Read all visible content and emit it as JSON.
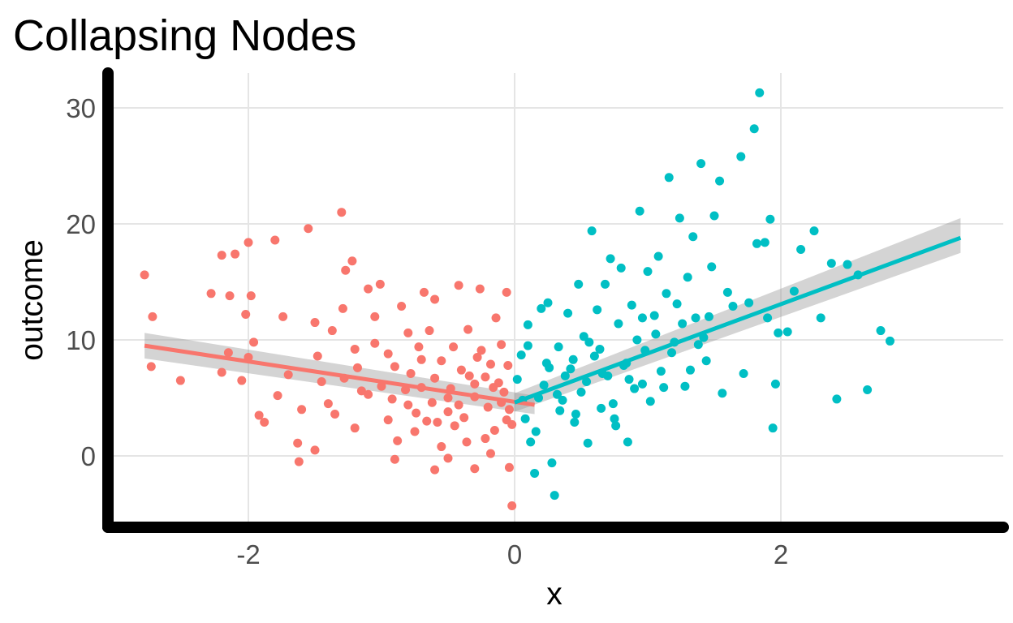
{
  "chart_data": {
    "type": "scatter",
    "title": "Collapsing Nodes",
    "xlabel": "x",
    "ylabel": "outcome",
    "xlim": [
      -3.0,
      3.5
    ],
    "ylim": [
      -6,
      33
    ],
    "x_ticks": [
      -2,
      0,
      2
    ],
    "x_tick_labels": [
      "-2",
      "0",
      "2"
    ],
    "y_ticks": [
      0,
      10,
      20,
      30
    ],
    "y_tick_labels": [
      "0",
      "10",
      "20",
      "30"
    ],
    "grid": true,
    "legend": "none",
    "colors": {
      "left": "#F8766D",
      "right": "#00BFC4",
      "ribbon": "#999999",
      "axis": "#000000"
    },
    "series": [
      {
        "color": "#F8766D",
        "points": [
          [
            -2.78,
            15.6
          ],
          [
            -2.72,
            12.0
          ],
          [
            -2.73,
            7.7
          ],
          [
            -2.51,
            6.5
          ],
          [
            -2.28,
            14.0
          ],
          [
            -2.2,
            17.3
          ],
          [
            -2.1,
            17.4
          ],
          [
            -2.14,
            13.8
          ],
          [
            -2.2,
            7.2
          ],
          [
            -2.15,
            8.9
          ],
          [
            -2.0,
            18.4
          ],
          [
            -1.98,
            13.8
          ],
          [
            -2.02,
            12.2
          ],
          [
            -2.0,
            8.5
          ],
          [
            -2.05,
            6.5
          ],
          [
            -1.96,
            9.8
          ],
          [
            -1.92,
            3.5
          ],
          [
            -1.88,
            2.9
          ],
          [
            -1.8,
            18.6
          ],
          [
            -1.78,
            5.2
          ],
          [
            -1.74,
            12.0
          ],
          [
            -1.7,
            7.0
          ],
          [
            -1.63,
            1.1
          ],
          [
            -1.6,
            4.0
          ],
          [
            -1.55,
            19.6
          ],
          [
            -1.5,
            11.5
          ],
          [
            -1.48,
            8.6
          ],
          [
            -1.45,
            6.4
          ],
          [
            -1.4,
            4.5
          ],
          [
            -1.37,
            10.8
          ],
          [
            -1.3,
            21.0
          ],
          [
            -1.29,
            12.7
          ],
          [
            -1.27,
            16.0
          ],
          [
            -1.22,
            16.8
          ],
          [
            -1.2,
            9.2
          ],
          [
            -1.15,
            5.6
          ],
          [
            -1.1,
            14.4
          ],
          [
            -1.05,
            12.0
          ],
          [
            -1.01,
            14.8
          ],
          [
            -0.95,
            3.1
          ],
          [
            -0.9,
            7.7
          ],
          [
            -0.85,
            12.9
          ],
          [
            -0.8,
            10.6
          ],
          [
            -0.75,
            2.1
          ],
          [
            -0.7,
            8.3
          ],
          [
            -0.68,
            14.1
          ],
          [
            -0.64,
            10.8
          ],
          [
            -0.6,
            13.5
          ],
          [
            -0.55,
            0.8
          ],
          [
            -0.5,
            5.0
          ],
          [
            -0.46,
            9.4
          ],
          [
            -0.42,
            14.7
          ],
          [
            -0.38,
            3.3
          ],
          [
            -0.35,
            10.9
          ],
          [
            -0.3,
            6.2
          ],
          [
            -0.26,
            14.4
          ],
          [
            -0.22,
            1.5
          ],
          [
            -0.18,
            7.9
          ],
          [
            -0.14,
            11.9
          ],
          [
            -0.1,
            4.6
          ],
          [
            -0.06,
            14.1
          ],
          [
            -0.04,
            -1.0
          ],
          [
            -0.02,
            -4.3
          ],
          [
            -0.6,
            -1.2
          ],
          [
            -0.9,
            -0.3
          ],
          [
            -1.2,
            2.4
          ],
          [
            -1.5,
            0.5
          ],
          [
            -1.62,
            -0.5
          ],
          [
            -1.28,
            6.7
          ],
          [
            -1.1,
            5.3
          ],
          [
            -0.95,
            8.8
          ],
          [
            -0.8,
            4.4
          ],
          [
            -0.7,
            5.9
          ],
          [
            -0.6,
            6.7
          ],
          [
            -0.5,
            3.8
          ],
          [
            -0.4,
            7.4
          ],
          [
            -0.3,
            5.1
          ],
          [
            -0.2,
            4.2
          ],
          [
            -0.12,
            6.3
          ],
          [
            -0.05,
            7.8
          ],
          [
            -0.02,
            2.7
          ],
          [
            -1.0,
            6.0
          ],
          [
            -0.92,
            4.9
          ],
          [
            -0.78,
            7.1
          ],
          [
            -0.66,
            3.0
          ],
          [
            -0.55,
            8.2
          ],
          [
            -0.45,
            2.6
          ],
          [
            -0.34,
            6.9
          ],
          [
            -0.25,
            9.1
          ],
          [
            -0.15,
            2.2
          ],
          [
            -0.08,
            5.5
          ],
          [
            -1.35,
            3.6
          ],
          [
            -1.18,
            7.6
          ],
          [
            -1.05,
            9.7
          ],
          [
            -0.88,
            1.3
          ],
          [
            -0.72,
            9.4
          ],
          [
            -0.62,
            4.6
          ],
          [
            -0.48,
            5.8
          ],
          [
            -0.36,
            1.2
          ],
          [
            -0.28,
            8.5
          ],
          [
            -0.16,
            5.9
          ],
          [
            -0.1,
            9.6
          ],
          [
            -0.04,
            4.0
          ],
          [
            -0.5,
            -0.2
          ],
          [
            -0.3,
            -1.1
          ],
          [
            -0.18,
            0.2
          ],
          [
            -0.82,
            5.7
          ],
          [
            -0.74,
            3.7
          ],
          [
            -0.58,
            2.9
          ],
          [
            -0.42,
            4.4
          ],
          [
            -0.22,
            6.8
          ],
          [
            -0.06,
            3.1
          ]
        ]
      },
      {
        "color": "#00BFC4",
        "points": [
          [
            0.02,
            6.6
          ],
          [
            0.05,
            8.7
          ],
          [
            0.08,
            3.2
          ],
          [
            0.1,
            11.3
          ],
          [
            0.12,
            1.2
          ],
          [
            0.15,
            -1.5
          ],
          [
            0.2,
            12.7
          ],
          [
            0.22,
            6.1
          ],
          [
            0.25,
            13.2
          ],
          [
            0.28,
            -0.6
          ],
          [
            0.3,
            -3.4
          ],
          [
            0.33,
            9.4
          ],
          [
            0.36,
            4.8
          ],
          [
            0.4,
            12.3
          ],
          [
            0.42,
            7.5
          ],
          [
            0.45,
            2.9
          ],
          [
            0.48,
            14.8
          ],
          [
            0.5,
            5.5
          ],
          [
            0.52,
            10.3
          ],
          [
            0.55,
            1.1
          ],
          [
            0.58,
            19.4
          ],
          [
            0.6,
            8.6
          ],
          [
            0.62,
            12.6
          ],
          [
            0.65,
            4.1
          ],
          [
            0.68,
            14.8
          ],
          [
            0.7,
            6.9
          ],
          [
            0.72,
            17.0
          ],
          [
            0.75,
            3.2
          ],
          [
            0.78,
            11.4
          ],
          [
            0.8,
            16.2
          ],
          [
            0.82,
            7.8
          ],
          [
            0.85,
            1.2
          ],
          [
            0.88,
            13.0
          ],
          [
            0.9,
            5.8
          ],
          [
            0.92,
            10.0
          ],
          [
            0.94,
            21.1
          ],
          [
            0.98,
            9.1
          ],
          [
            1.0,
            15.9
          ],
          [
            1.02,
            4.7
          ],
          [
            1.05,
            12.1
          ],
          [
            1.08,
            17.2
          ],
          [
            1.1,
            7.3
          ],
          [
            1.14,
            14.0
          ],
          [
            1.16,
            24.0
          ],
          [
            1.2,
            9.8
          ],
          [
            1.24,
            20.5
          ],
          [
            1.28,
            6.0
          ],
          [
            1.3,
            15.4
          ],
          [
            1.34,
            18.9
          ],
          [
            1.36,
            11.9
          ],
          [
            1.4,
            25.2
          ],
          [
            1.44,
            8.2
          ],
          [
            1.48,
            16.3
          ],
          [
            1.5,
            20.7
          ],
          [
            1.54,
            23.7
          ],
          [
            1.56,
            5.4
          ],
          [
            1.6,
            14.1
          ],
          [
            1.64,
            12.9
          ],
          [
            1.7,
            25.8
          ],
          [
            1.72,
            7.1
          ],
          [
            1.76,
            13.2
          ],
          [
            1.8,
            28.2
          ],
          [
            1.82,
            18.3
          ],
          [
            1.84,
            31.3
          ],
          [
            1.88,
            18.4
          ],
          [
            1.9,
            11.9
          ],
          [
            1.92,
            20.4
          ],
          [
            1.94,
            2.4
          ],
          [
            1.96,
            6.2
          ],
          [
            1.98,
            10.6
          ],
          [
            2.05,
            10.7
          ],
          [
            2.1,
            14.2
          ],
          [
            2.15,
            17.8
          ],
          [
            2.25,
            19.4
          ],
          [
            2.3,
            11.9
          ],
          [
            2.38,
            16.6
          ],
          [
            2.42,
            4.9
          ],
          [
            2.5,
            16.5
          ],
          [
            2.58,
            15.6
          ],
          [
            2.65,
            5.7
          ],
          [
            2.75,
            10.8
          ],
          [
            2.82,
            9.9
          ],
          [
            0.1,
            9.5
          ],
          [
            0.18,
            5.0
          ],
          [
            0.26,
            7.6
          ],
          [
            0.34,
            3.9
          ],
          [
            0.44,
            8.3
          ],
          [
            0.54,
            6.4
          ],
          [
            0.64,
            9.2
          ],
          [
            0.74,
            4.5
          ],
          [
            0.84,
            8.0
          ],
          [
            0.96,
            6.2
          ],
          [
            1.06,
            10.5
          ],
          [
            1.18,
            8.9
          ],
          [
            1.26,
            11.4
          ],
          [
            1.38,
            9.6
          ],
          [
            1.46,
            12.0
          ],
          [
            0.06,
            4.8
          ],
          [
            0.16,
            2.1
          ],
          [
            0.24,
            8.0
          ],
          [
            0.32,
            5.3
          ],
          [
            0.38,
            6.9
          ],
          [
            0.46,
            3.6
          ],
          [
            0.56,
            9.8
          ],
          [
            0.66,
            7.1
          ],
          [
            0.76,
            2.6
          ],
          [
            0.86,
            6.6
          ],
          [
            0.96,
            11.9
          ],
          [
            1.12,
            5.9
          ],
          [
            1.22,
            13.1
          ],
          [
            1.32,
            7.4
          ],
          [
            1.42,
            10.2
          ]
        ]
      }
    ],
    "fits": [
      {
        "color": "#F8766D",
        "x": [
          -2.78,
          0.15
        ],
        "y": [
          9.5,
          4.4
        ],
        "ribbon_lo": [
          8.4,
          3.6
        ],
        "ribbon_hi": [
          10.6,
          5.2
        ]
      },
      {
        "color": "#00BFC4",
        "x": [
          0.0,
          3.35
        ],
        "y": [
          4.6,
          18.8
        ],
        "ribbon_lo": [
          3.8,
          17.5
        ],
        "ribbon_hi": [
          5.4,
          20.5
        ]
      }
    ]
  }
}
